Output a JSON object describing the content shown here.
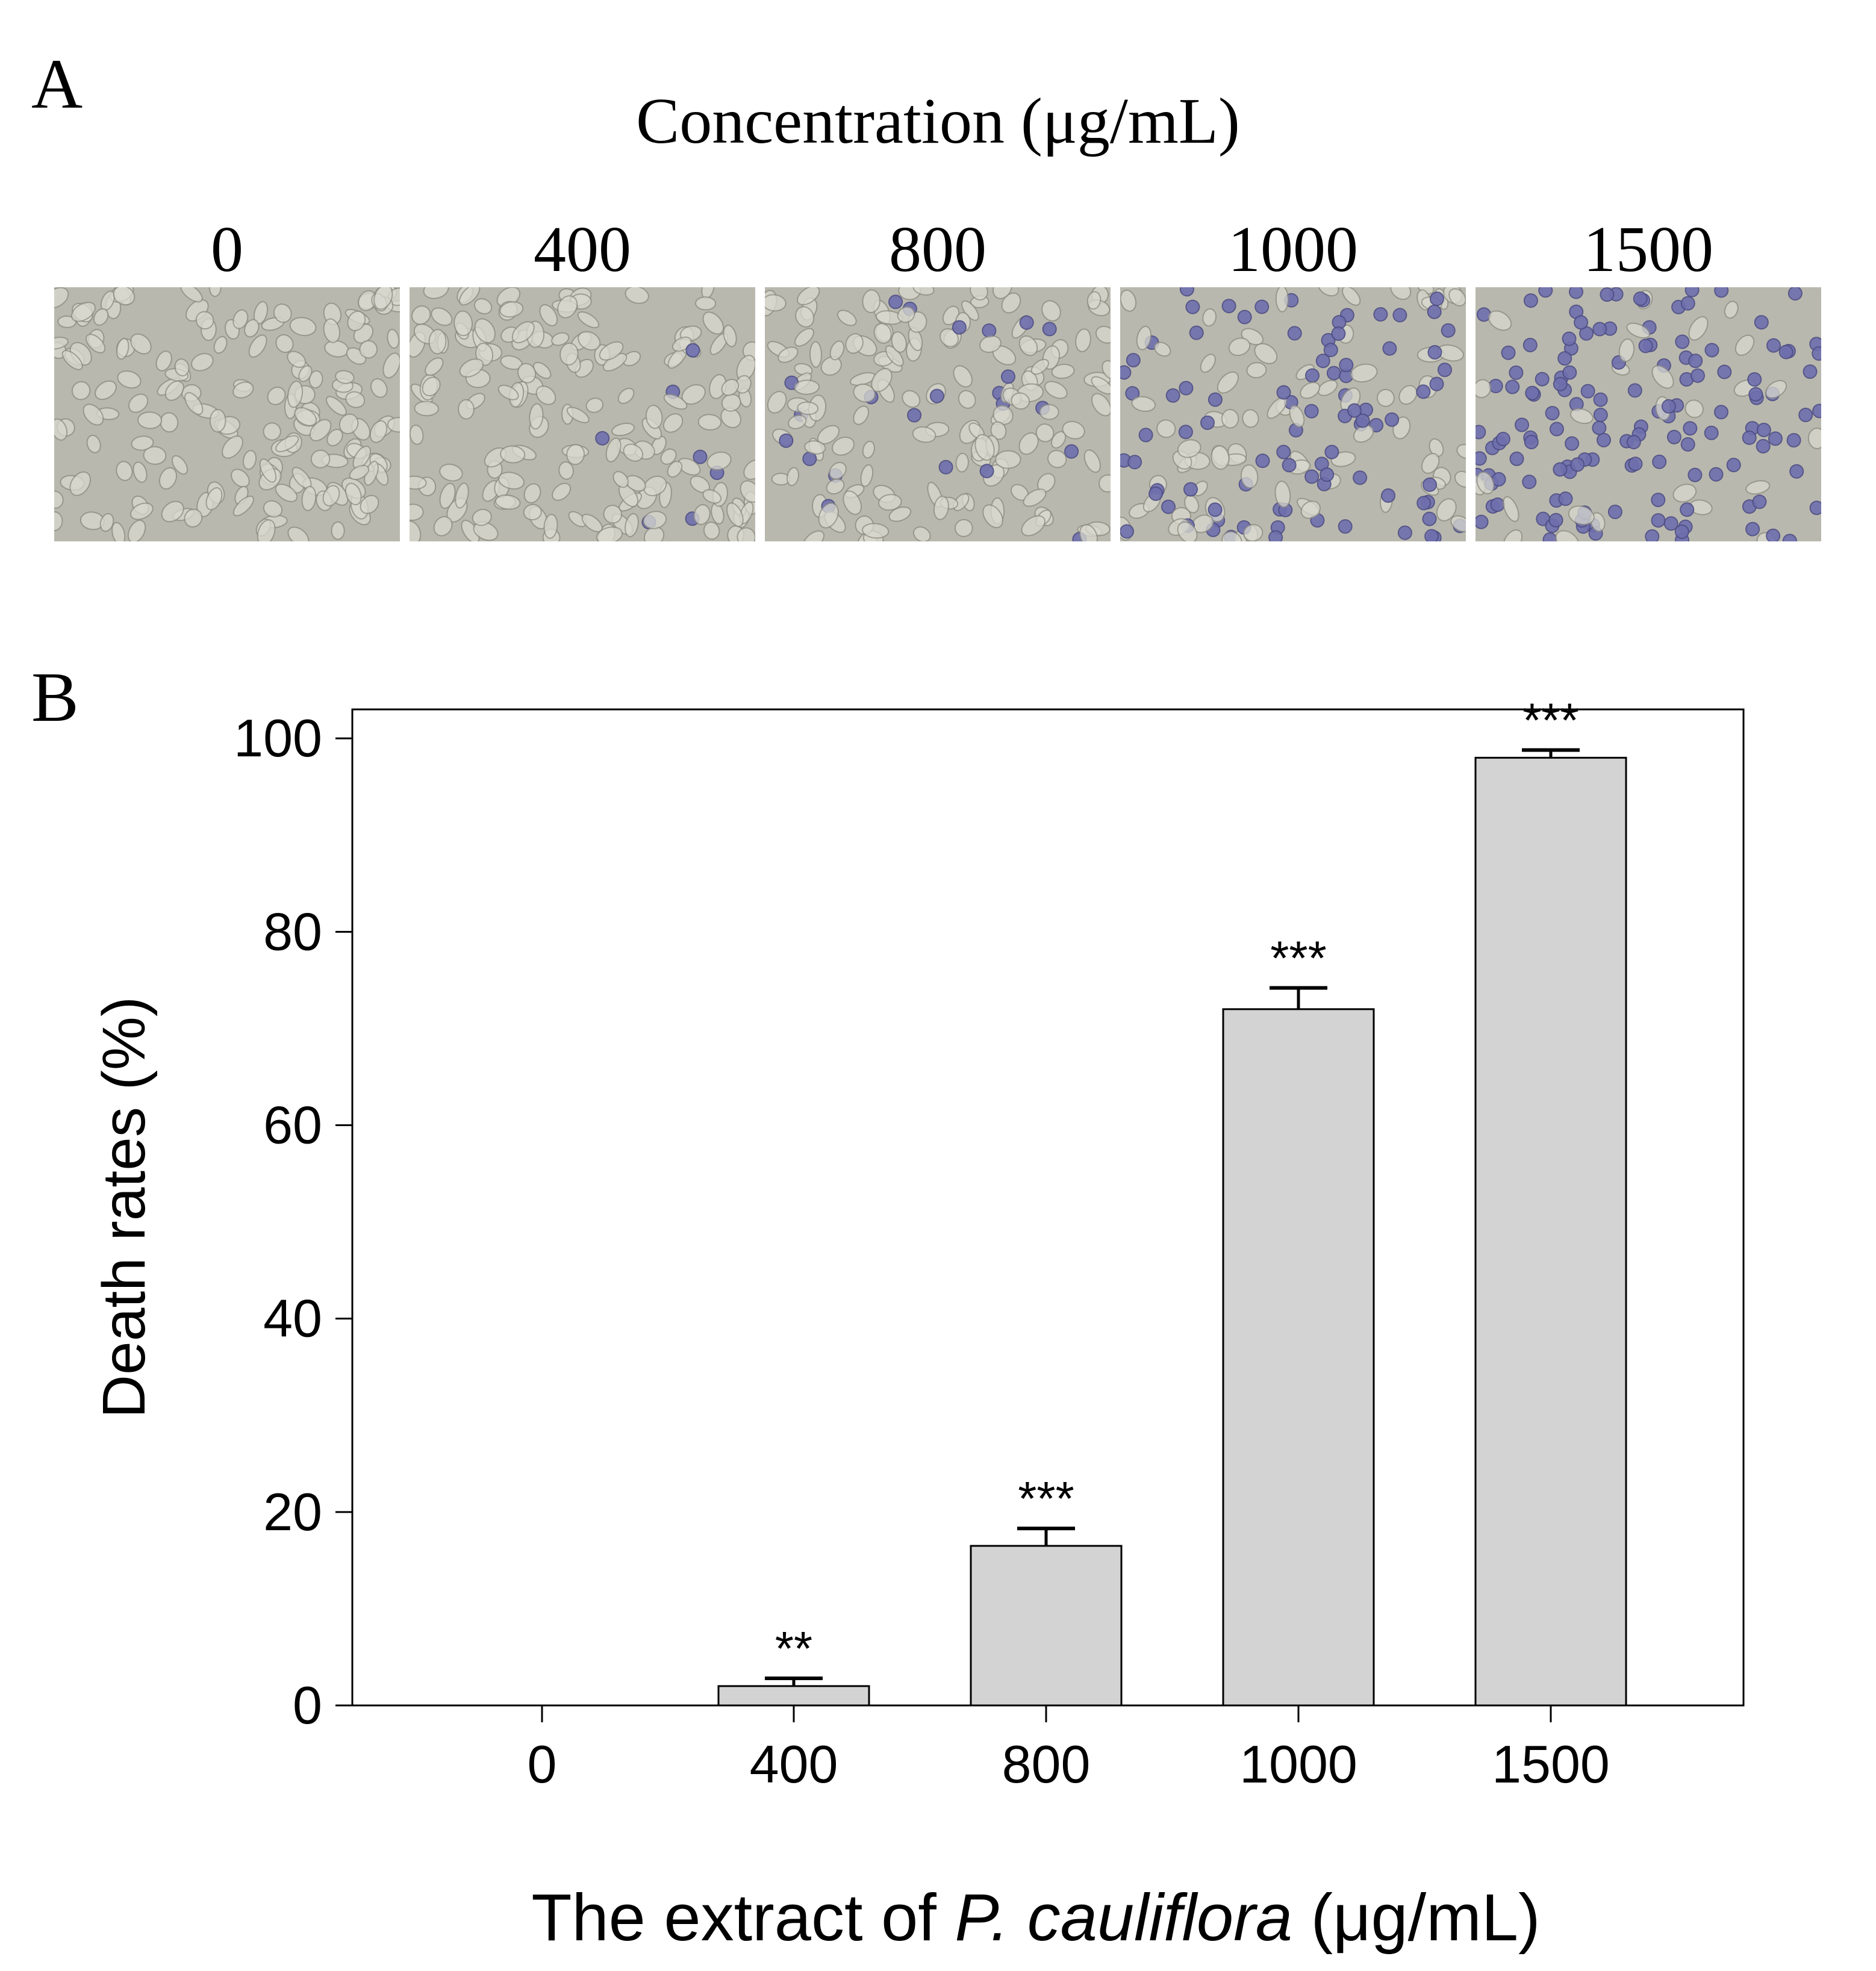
{
  "panel_a": {
    "letter": "A",
    "title": "Concentration (μg/mL)",
    "images": [
      {
        "label": "0",
        "stained_fraction": 0.0
      },
      {
        "label": "400",
        "stained_fraction": 0.03
      },
      {
        "label": "800",
        "stained_fraction": 0.12
      },
      {
        "label": "1000",
        "stained_fraction": 0.55
      },
      {
        "label": "1500",
        "stained_fraction": 0.85
      }
    ],
    "colors": {
      "background": "#b9b8ae",
      "cell": "#d8d8cf",
      "stain": "#6f6fae"
    }
  },
  "panel_b": {
    "letter": "B"
  },
  "chart_data": {
    "type": "bar",
    "categories": [
      "0",
      "400",
      "800",
      "1000",
      "1500"
    ],
    "values": [
      0,
      2,
      16.5,
      72,
      98
    ],
    "error": [
      0,
      0.8,
      1.8,
      2.2,
      0.8
    ],
    "significance": [
      "",
      "**",
      "***",
      "***",
      "***"
    ],
    "ylabel": "Death rates (%)",
    "xlabel_prefix": "The extract of ",
    "xlabel_italic": "P. cauliflora",
    "xlabel_suffix": " (μg/mL)",
    "ylim": [
      0,
      103
    ],
    "yticks": [
      0,
      20,
      40,
      60,
      80,
      100
    ],
    "grid": false,
    "bar_color": "#d3d3d3"
  }
}
